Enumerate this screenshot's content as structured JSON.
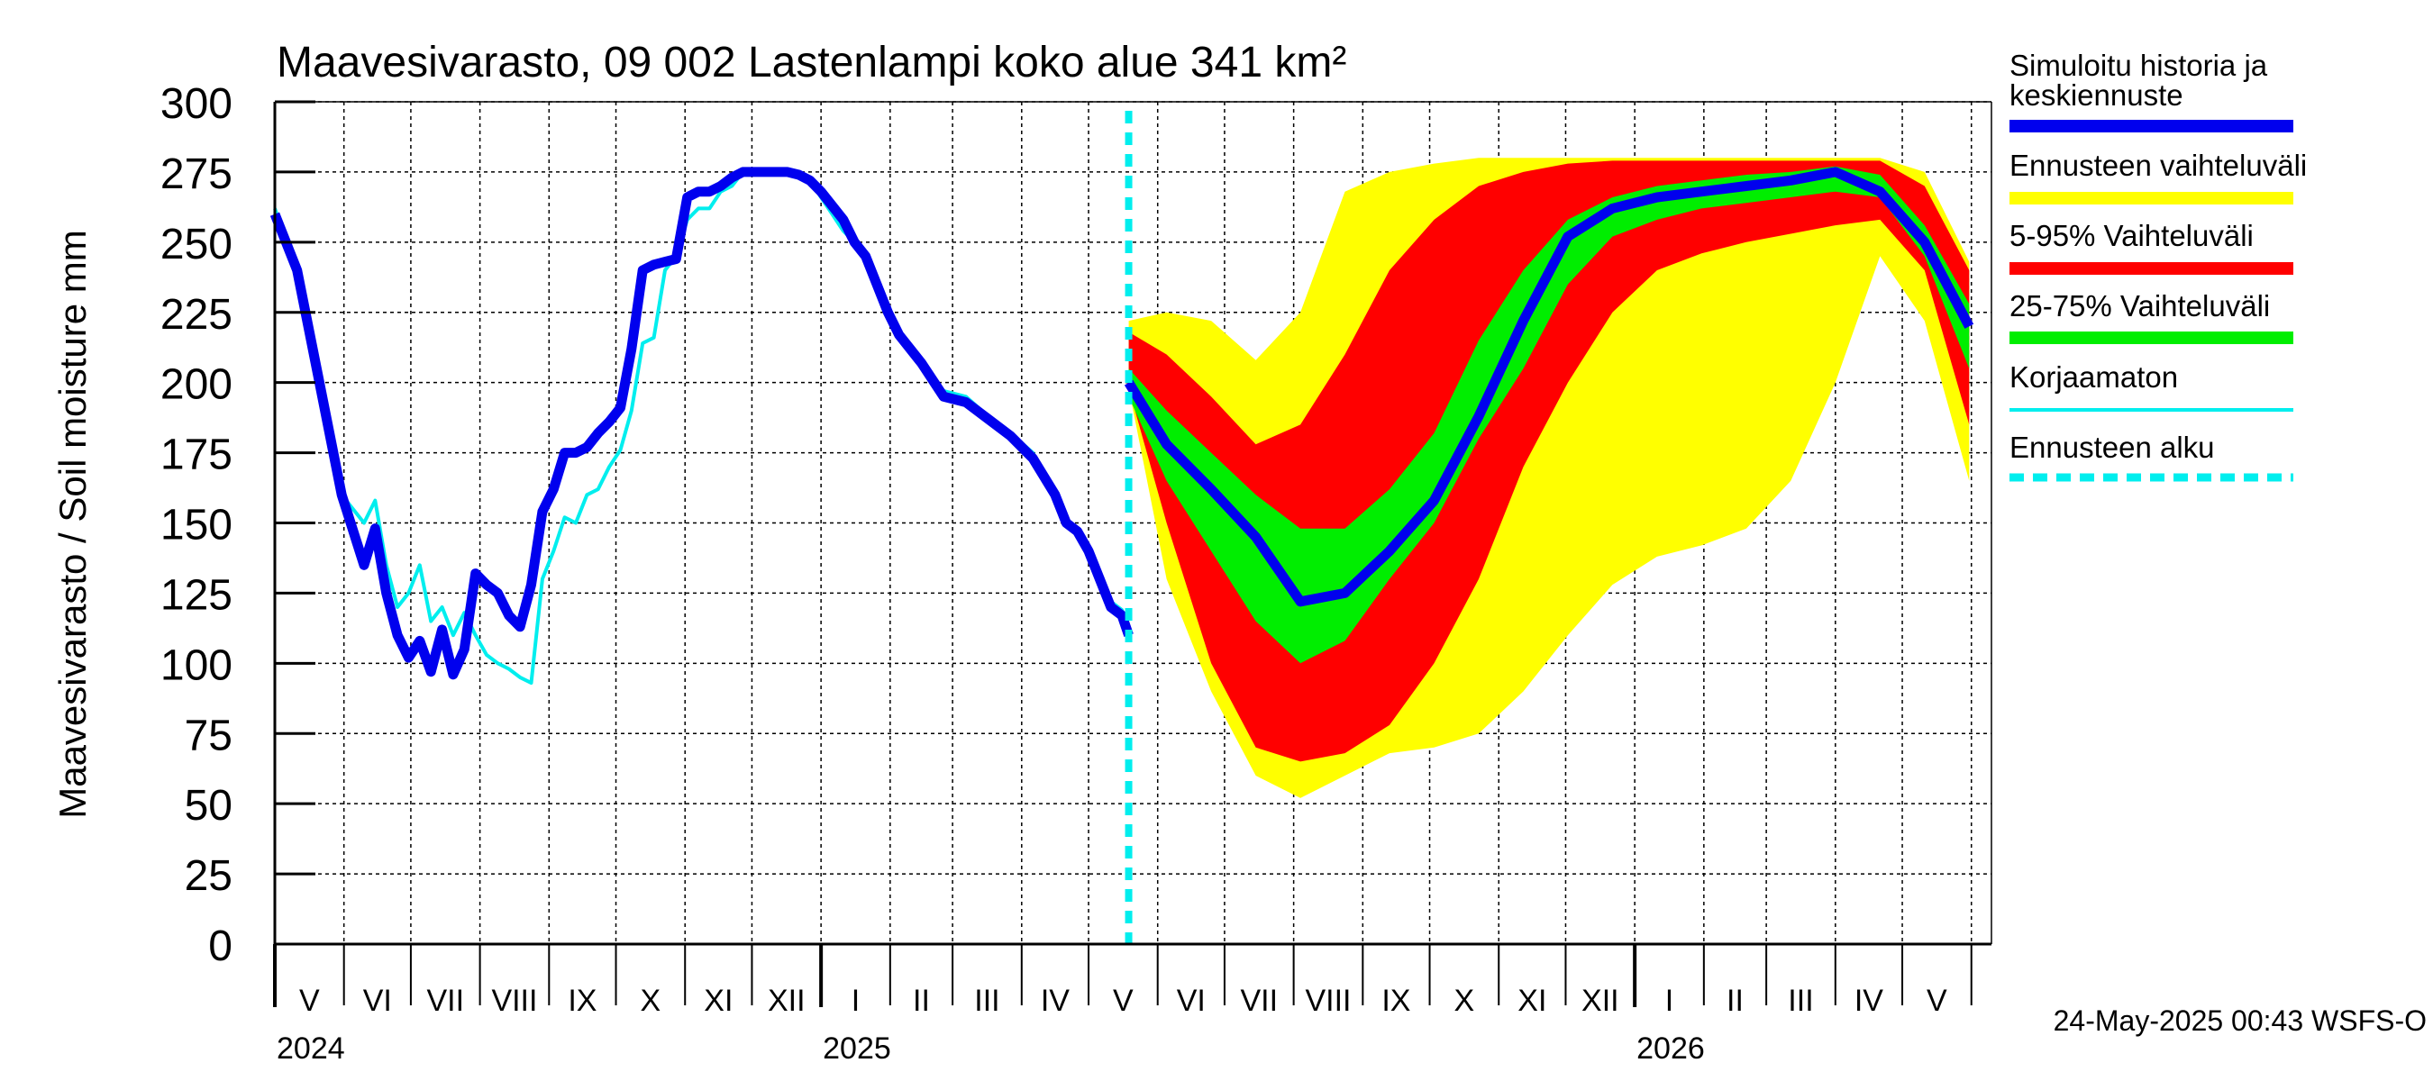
{
  "chart_data": {
    "type": "area",
    "title": "Maavesivarasto, 09 002 Lastenlampi koko alue 341 km²",
    "ylabel": "Maavesivarasto / Soil moisture   mm",
    "xlabel": "",
    "ylim": [
      0,
      300
    ],
    "yticks": [
      0,
      25,
      50,
      75,
      100,
      125,
      150,
      175,
      200,
      225,
      250,
      275,
      300
    ],
    "grid": true,
    "month_labels": [
      "V",
      "VI",
      "VII",
      "VIII",
      "IX",
      "X",
      "XI",
      "XII",
      "I",
      "II",
      "III",
      "IV",
      "V",
      "VI",
      "VII",
      "VIII",
      "IX",
      "X",
      "XI",
      "XII",
      "I",
      "II",
      "III",
      "IV",
      "V"
    ],
    "year_labels": [
      "2024",
      "2025",
      "2026"
    ],
    "forecast_start_day": 383,
    "legend": [
      {
        "label": "Simuloitu historia ja keskiennuste",
        "color": "#0000ee"
      },
      {
        "label": "Ennusteen vaihteluväli",
        "color": "#ffff00"
      },
      {
        "label": "5-95% Vaihteluväli",
        "color": "#ff0000"
      },
      {
        "label": "25-75% Vaihteluväli",
        "color": "#00ee00"
      },
      {
        "label": "Korjaamaton",
        "color": "#00eeee"
      },
      {
        "label": "Ennusteen alku",
        "color": "#00eeee"
      }
    ],
    "series": [
      {
        "name": "Simuloitu historia ja keskiennuste",
        "x": [
          0,
          10,
          20,
          30,
          40,
          45,
          50,
          55,
          60,
          65,
          70,
          75,
          80,
          85,
          90,
          95,
          100,
          105,
          110,
          115,
          120,
          125,
          130,
          135,
          140,
          145,
          150,
          155,
          160,
          165,
          170,
          175,
          180,
          185,
          190,
          195,
          200,
          205,
          210,
          215,
          220,
          225,
          230,
          235,
          240,
          245,
          250,
          255,
          260,
          265,
          270,
          275,
          280,
          290,
          300,
          310,
          320,
          330,
          340,
          350,
          355,
          360,
          365,
          370,
          375,
          380,
          383
        ],
        "y": [
          260,
          240,
          200,
          160,
          135,
          148,
          125,
          110,
          102,
          108,
          97,
          112,
          96,
          105,
          132,
          128,
          125,
          117,
          113,
          128,
          154,
          162,
          175,
          175,
          177,
          182,
          186,
          191,
          212,
          240,
          242,
          243,
          244,
          266,
          268,
          268,
          270,
          273,
          275,
          275,
          275,
          275,
          275,
          274,
          272,
          268,
          263,
          258,
          250,
          245,
          235,
          225,
          217,
          207,
          195,
          193,
          187,
          181,
          173,
          160,
          150,
          147,
          140,
          130,
          120,
          117,
          110
        ]
      },
      {
        "name": "Korjaamaton",
        "x": [
          0,
          10,
          20,
          30,
          40,
          45,
          50,
          55,
          60,
          65,
          70,
          75,
          80,
          85,
          90,
          95,
          100,
          105,
          110,
          115,
          120,
          125,
          130,
          135,
          140,
          145,
          150,
          155,
          160,
          165,
          170,
          175,
          180,
          185,
          190,
          195,
          200,
          205,
          210,
          215,
          220,
          225,
          230,
          235,
          240,
          245,
          250,
          255,
          260,
          265,
          270,
          275,
          280,
          290,
          300,
          310,
          320,
          330,
          340,
          350,
          355,
          360,
          365,
          370,
          375,
          380,
          383
        ],
        "y": [
          262,
          240,
          198,
          160,
          150,
          158,
          135,
          120,
          125,
          135,
          115,
          120,
          110,
          118,
          110,
          103,
          100,
          98,
          95,
          93,
          130,
          140,
          152,
          150,
          160,
          162,
          170,
          176,
          190,
          214,
          216,
          240,
          245,
          258,
          262,
          262,
          268,
          270,
          275,
          276,
          276,
          276,
          276,
          275,
          272,
          266,
          260,
          254,
          250,
          244,
          234,
          226,
          218,
          206,
          197,
          195,
          188,
          182,
          175,
          161,
          151,
          148,
          142,
          132,
          122,
          119,
          112
        ]
      },
      {
        "name": "Keskiennuste",
        "x": [
          383,
          400,
          420,
          440,
          460,
          480,
          500,
          520,
          540,
          560,
          580,
          600,
          620,
          640,
          660,
          680,
          700,
          720,
          740,
          760
        ],
        "y": [
          200,
          178,
          162,
          145,
          122,
          125,
          140,
          158,
          188,
          222,
          252,
          262,
          266,
          268,
          270,
          272,
          275,
          268,
          250,
          220
        ]
      }
    ],
    "bands": [
      {
        "name": "Ennusteen vaihteluväli",
        "x": [
          383,
          400,
          420,
          440,
          460,
          480,
          500,
          520,
          540,
          560,
          580,
          600,
          620,
          640,
          660,
          680,
          700,
          720,
          740,
          760
        ],
        "lower": [
          198,
          130,
          90,
          60,
          52,
          60,
          68,
          70,
          75,
          90,
          110,
          128,
          138,
          142,
          148,
          165,
          200,
          245,
          222,
          165
        ],
        "upper": [
          222,
          225,
          222,
          208,
          225,
          268,
          275,
          278,
          280,
          280,
          280,
          280,
          280,
          280,
          280,
          280,
          280,
          280,
          275,
          243
        ]
      },
      {
        "name": "5-95% Vaihteluväli",
        "x": [
          383,
          400,
          420,
          440,
          460,
          480,
          500,
          520,
          540,
          560,
          580,
          600,
          620,
          640,
          660,
          680,
          700,
          720,
          740,
          760
        ],
        "lower": [
          198,
          150,
          100,
          70,
          65,
          68,
          78,
          100,
          130,
          170,
          200,
          225,
          240,
          246,
          250,
          253,
          256,
          258,
          240,
          185
        ],
        "upper": [
          218,
          210,
          195,
          178,
          185,
          210,
          240,
          258,
          270,
          275,
          278,
          279,
          279,
          279,
          279,
          279,
          279,
          279,
          270,
          240
        ]
      },
      {
        "name": "25-75% Vaihteluväli",
        "x": [
          383,
          400,
          420,
          440,
          460,
          480,
          500,
          520,
          540,
          560,
          580,
          600,
          620,
          640,
          660,
          680,
          700,
          720,
          740,
          760
        ],
        "lower": [
          195,
          165,
          140,
          115,
          100,
          108,
          130,
          150,
          180,
          205,
          235,
          252,
          258,
          262,
          264,
          266,
          268,
          266,
          245,
          205
        ],
        "upper": [
          205,
          190,
          175,
          160,
          148,
          148,
          162,
          182,
          215,
          240,
          258,
          266,
          270,
          272,
          274,
          275,
          277,
          274,
          256,
          228
        ]
      }
    ],
    "footer_timestamp": "24-May-2025 00:43 WSFS-O"
  }
}
